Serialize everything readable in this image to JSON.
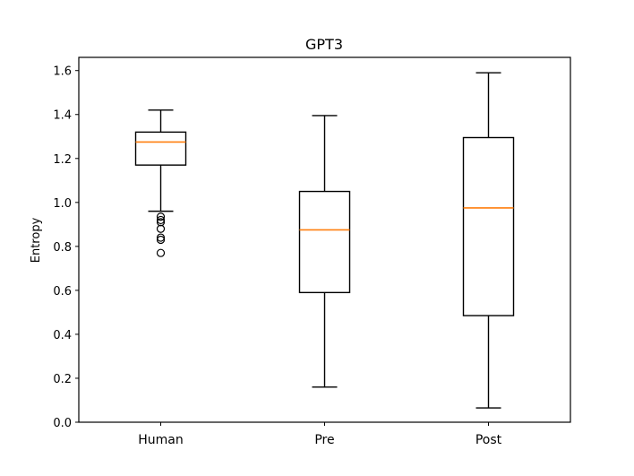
{
  "chart_data": {
    "type": "box",
    "title": "GPT3",
    "xlabel": "",
    "ylabel": "Entropy",
    "ylim": [
      0.0,
      1.66
    ],
    "yticks": [
      0.0,
      0.2,
      0.4,
      0.6,
      0.8,
      1.0,
      1.2,
      1.4,
      1.6
    ],
    "ytick_labels": [
      "0.0",
      "0.2",
      "0.4",
      "0.6",
      "0.8",
      "1.0",
      "1.2",
      "1.4",
      "1.6"
    ],
    "grid": false,
    "categories": [
      "Human",
      "Pre",
      "Post"
    ],
    "boxes": [
      {
        "label": "Human",
        "whisker_low": 0.96,
        "q1": 1.17,
        "median": 1.275,
        "q3": 1.32,
        "whisker_high": 1.42,
        "outliers": [
          0.935,
          0.92,
          0.91,
          0.88,
          0.84,
          0.83,
          0.77
        ]
      },
      {
        "label": "Pre",
        "whisker_low": 0.16,
        "q1": 0.59,
        "median": 0.875,
        "q3": 1.05,
        "whisker_high": 1.395,
        "outliers": []
      },
      {
        "label": "Post",
        "whisker_low": 0.065,
        "q1": 0.485,
        "median": 0.975,
        "q3": 1.295,
        "whisker_high": 1.59,
        "outliers": []
      }
    ],
    "colors": {
      "box": "#000000",
      "median": "#ff7f0e",
      "outlier": "#000000",
      "axes": "#000000"
    }
  }
}
